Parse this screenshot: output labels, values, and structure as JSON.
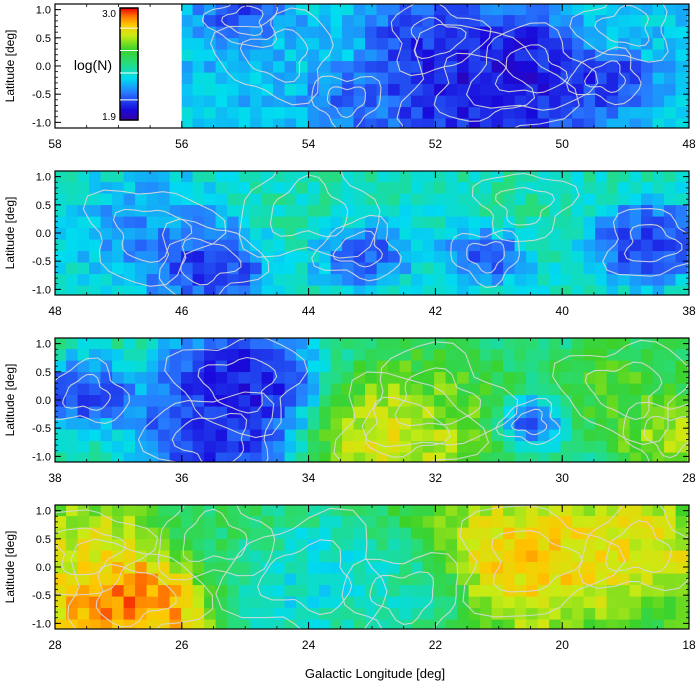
{
  "chart_data": {
    "type": "heatmap",
    "xlabel": "Galactic Longitude [deg]",
    "ylabel": "Latitude [deg]",
    "colorbar": {
      "label": "log(N)",
      "min_label": "1.9",
      "max_label": "3.0",
      "range": [
        1.9,
        3.0
      ],
      "colormap": "rainbow (purple-blue-cyan-green-yellow-orange-red)"
    },
    "contours": {
      "color": "#d8d8d8",
      "note": "white/grey contour lines overlaid on maps"
    },
    "ytick_labels": [
      "1.0",
      "0.5",
      "0.0",
      "-0.5",
      "-1.0"
    ],
    "ylim": [
      -1.1,
      1.1
    ],
    "panels": [
      {
        "xlim": [
          58,
          48
        ],
        "xtick_labels": [
          "58",
          "56",
          "54",
          "52",
          "50",
          "48"
        ],
        "show_colorbar": true,
        "data_starts_at_longitude": 56,
        "features": [
          {
            "l": 51.3,
            "b": -0.4,
            "logN": 1.98,
            "r": 1.4
          },
          {
            "l": 50.5,
            "b": -0.1,
            "logN": 2.02,
            "r": 1.0
          },
          {
            "l": 52.0,
            "b": 0.5,
            "logN": 2.05,
            "r": 0.8
          },
          {
            "l": 55.0,
            "b": 0.8,
            "logN": 2.05,
            "r": 0.6
          },
          {
            "l": 49.3,
            "b": -0.2,
            "logN": 2.05,
            "r": 0.6
          },
          {
            "l": 53.4,
            "b": -0.6,
            "logN": 2.12,
            "r": 0.6
          },
          {
            "l": 54.5,
            "b": 0.2,
            "logN": 2.28,
            "r": 1.0
          },
          {
            "l": 49.0,
            "b": 0.7,
            "logN": 2.3,
            "r": 0.8
          }
        ]
      },
      {
        "xlim": [
          48,
          38
        ],
        "xtick_labels": [
          "48",
          "46",
          "44",
          "42",
          "40",
          "38"
        ],
        "show_colorbar": false,
        "features": [
          {
            "l": 45.6,
            "b": -0.5,
            "logN": 2.02,
            "r": 0.9
          },
          {
            "l": 43.2,
            "b": -0.3,
            "logN": 2.06,
            "r": 0.7
          },
          {
            "l": 38.6,
            "b": -0.2,
            "logN": 2.05,
            "r": 0.8
          },
          {
            "l": 41.2,
            "b": -0.4,
            "logN": 2.1,
            "r": 0.6
          },
          {
            "l": 46.5,
            "b": 0.0,
            "logN": 2.2,
            "r": 1.1
          },
          {
            "l": 40.6,
            "b": 0.5,
            "logN": 2.42,
            "r": 0.8
          },
          {
            "l": 44.0,
            "b": 0.4,
            "logN": 2.4,
            "r": 1.2
          }
        ]
      },
      {
        "xlim": [
          38,
          28
        ],
        "xtick_labels": [
          "38",
          "36",
          "34",
          "32",
          "30",
          "28"
        ],
        "show_colorbar": false,
        "features": [
          {
            "l": 35.1,
            "b": 0.3,
            "logN": 1.98,
            "r": 1.1
          },
          {
            "l": 35.5,
            "b": -0.7,
            "logN": 2.02,
            "r": 1.1
          },
          {
            "l": 37.5,
            "b": 0.1,
            "logN": 2.06,
            "r": 0.7
          },
          {
            "l": 30.5,
            "b": -0.4,
            "logN": 2.05,
            "r": 0.5
          },
          {
            "l": 32.5,
            "b": -0.5,
            "logN": 2.85,
            "r": 1.2
          },
          {
            "l": 32.0,
            "b": 0.0,
            "logN": 2.6,
            "r": 1.2
          },
          {
            "l": 29.0,
            "b": 0.2,
            "logN": 2.62,
            "r": 1.1
          },
          {
            "l": 28.3,
            "b": -0.6,
            "logN": 2.75,
            "r": 0.8
          }
        ]
      },
      {
        "xlim": [
          28,
          18
        ],
        "xtick_labels": [
          "28",
          "26",
          "24",
          "22",
          "20",
          "18"
        ],
        "show_colorbar": false,
        "features": [
          {
            "l": 26.8,
            "b": -0.5,
            "logN": 2.98,
            "r": 1.2
          },
          {
            "l": 27.5,
            "b": 0.3,
            "logN": 2.75,
            "r": 1.0
          },
          {
            "l": 20.5,
            "b": 0.1,
            "logN": 2.85,
            "r": 1.3
          },
          {
            "l": 18.8,
            "b": 0.3,
            "logN": 2.8,
            "r": 1.0
          },
          {
            "l": 24.0,
            "b": -0.2,
            "logN": 2.3,
            "r": 1.4
          },
          {
            "l": 22.5,
            "b": -0.5,
            "logN": 2.4,
            "r": 1.0
          },
          {
            "l": 25.5,
            "b": 0.5,
            "logN": 2.5,
            "r": 1.0
          }
        ]
      }
    ]
  }
}
